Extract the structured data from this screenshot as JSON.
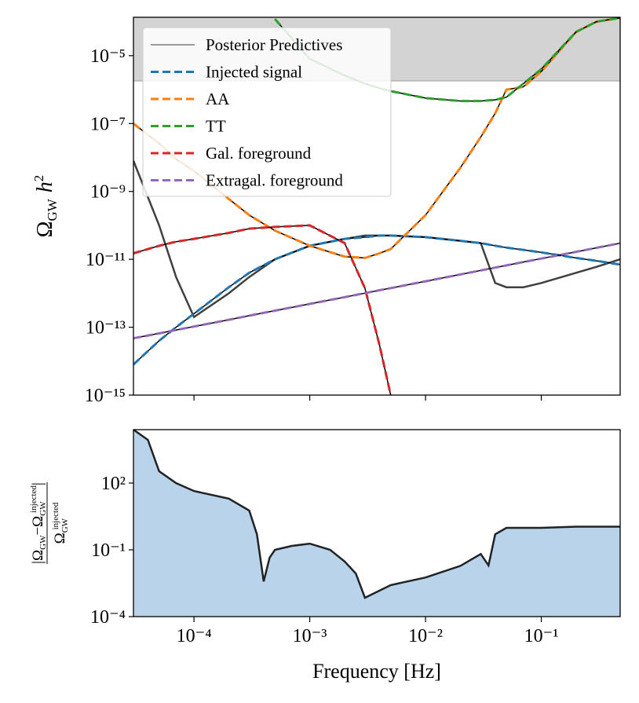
{
  "chart_data": [
    {
      "type": "line",
      "xscale": "log",
      "yscale": "log",
      "ylabel": [
        "Ω",
        "GW",
        "h",
        "2"
      ],
      "xlim": [
        3e-05,
        0.48
      ],
      "ylim": [
        1e-15,
        0.000135
      ],
      "xticks": [
        0.0001,
        0.001,
        0.01,
        0.1
      ],
      "xtick_labels": false,
      "yticks": [
        {
          "value": 1e-15,
          "label": "10⁻¹⁵"
        },
        {
          "value": 1e-13,
          "label": "10⁻¹³"
        },
        {
          "value": 1e-11,
          "label": "10⁻¹¹"
        },
        {
          "value": 1e-09,
          "label": "10⁻⁹"
        },
        {
          "value": 1e-07,
          "label": "10⁻⁷"
        },
        {
          "value": 1e-05,
          "label": "10⁻⁵"
        }
      ],
      "upper_limit": 1.8e-06,
      "upper_limit_color": "#d3d3d3",
      "legend": "upper left",
      "x": [
        3e-05,
        5e-05,
        7e-05,
        0.0001,
        0.0002,
        0.0003,
        0.0005,
        0.001,
        0.002,
        0.003,
        0.004,
        0.005,
        0.01,
        0.02,
        0.03,
        0.04,
        0.05,
        0.07,
        0.1,
        0.2,
        0.3,
        0.48
      ],
      "series": [
        {
          "name": "Posterior Predictives",
          "color": "#000000",
          "style": "solid",
          "values": [
            8e-09,
            1e-10,
            3e-12,
            2e-13,
            1e-12,
            3e-12,
            1e-11,
            2.5e-11,
            4e-11,
            5e-11,
            5e-11,
            5e-11,
            4.5e-11,
            3.5e-11,
            3e-11,
            2e-12,
            1.5e-12,
            1.5e-12,
            2e-12,
            4e-12,
            6e-12,
            1e-11
          ]
        },
        {
          "name": "Injected signal",
          "color": "#1f77b4",
          "style": "dashed",
          "values": [
            8e-15,
            4e-14,
            1e-13,
            2.5e-13,
            1.5e-12,
            4e-12,
            1e-11,
            2.5e-11,
            4e-11,
            4.5e-11,
            5e-11,
            5e-11,
            4.5e-11,
            3.5e-11,
            3e-11,
            2.5e-11,
            2.2e-11,
            1.9e-11,
            1.6e-11,
            1.1e-11,
            9e-12,
            7e-12
          ]
        },
        {
          "name": "AA",
          "color": "#ff7f0e",
          "style": "dashed",
          "values": [
            1e-07,
            2.6e-08,
            9e-09,
            4e-09,
            6e-10,
            2e-10,
            7e-11,
            2.5e-11,
            1.2e-11,
            1.1e-11,
            1.5e-11,
            2e-11,
            2e-10,
            5e-09,
            4e-08,
            2e-07,
            1e-06,
            1.2e-06,
            3.4e-06,
            5e-05,
            0.0001,
            0.00013
          ]
        },
        {
          "name": "TT",
          "color": "#2ca02c",
          "style": "dashed",
          "values": [
            null,
            null,
            null,
            null,
            null,
            null,
            0.00012,
            8e-06,
            2.6e-06,
            1.5e-06,
            1.1e-06,
            9e-07,
            5.6e-07,
            4.6e-07,
            4.6e-07,
            5e-07,
            6e-07,
            1.5e-06,
            4e-06,
            5e-05,
            0.0001,
            0.00013
          ]
        },
        {
          "name": "Gal. foreground",
          "color": "#d62728",
          "style": "dashed",
          "values": [
            1.5e-11,
            2.5e-11,
            3.3e-11,
            4e-11,
            6e-11,
            8e-11,
            9e-11,
            1e-10,
            3e-11,
            1.4e-12,
            3e-14,
            1e-15,
            null,
            null,
            null,
            null,
            null,
            null,
            null,
            null,
            null,
            null
          ]
        },
        {
          "name": "Extragal. foreground",
          "color": "#9467bd",
          "style": "dashed",
          "values": [
            4.7e-14,
            6.6e-14,
            8.3e-14,
            1.05e-13,
            1.66e-13,
            2.18e-13,
            3.07e-13,
            4.87e-13,
            7.7e-13,
            1.01e-12,
            1.23e-12,
            1.42e-12,
            2.26e-12,
            3.59e-12,
            4.7e-12,
            5.69e-12,
            6.6e-12,
            8.3e-12,
            1.05e-11,
            1.66e-11,
            2.18e-11,
            2.98e-11
          ]
        }
      ]
    },
    {
      "type": "area",
      "xscale": "log",
      "yscale": "log",
      "xlabel": "Frequency [Hz]",
      "ylabel": {
        "numerator": [
          "|Ω",
          "GW",
          "−Ω",
          "GW",
          "injected",
          "|"
        ],
        "denominator": [
          "Ω",
          "GW",
          "injected"
        ]
      },
      "xlim": [
        3e-05,
        0.48
      ],
      "ylim": [
        0.0001,
        25000.0
      ],
      "xticks": [
        {
          "value": 0.0001,
          "label": "10⁻⁴"
        },
        {
          "value": 0.001,
          "label": "10⁻³"
        },
        {
          "value": 0.01,
          "label": "10⁻²"
        },
        {
          "value": 0.1,
          "label": "10⁻¹"
        }
      ],
      "xtick_labels": true,
      "yticks": [
        {
          "value": 0.0001,
          "label": "10⁻⁴"
        },
        {
          "value": 0.1,
          "label": "10⁻¹"
        },
        {
          "value": 100,
          "label": "10²"
        }
      ],
      "x": [
        3e-05,
        4e-05,
        5e-05,
        7e-05,
        0.0001,
        0.0002,
        0.0003,
        0.00035,
        0.0004,
        0.00045,
        0.0005,
        0.0007,
        0.001,
        0.0015,
        0.002,
        0.0025,
        0.003,
        0.005,
        0.007,
        0.01,
        0.02,
        0.03,
        0.035,
        0.04,
        0.05,
        0.1,
        0.2,
        0.48
      ],
      "series": [
        {
          "color": "#000000",
          "fill_color": "#b9d3ea",
          "values": [
            25000.0,
            8700.0,
            340,
            100,
            44,
            20,
            5.8,
            0.5,
            0.0038,
            0.044,
            0.1,
            0.15,
            0.19,
            0.1,
            0.03,
            0.0086,
            0.0007,
            0.0026,
            0.0038,
            0.0057,
            0.019,
            0.065,
            0.02,
            0.5,
            0.97,
            0.97,
            1.1,
            1.1
          ]
        }
      ]
    }
  ]
}
